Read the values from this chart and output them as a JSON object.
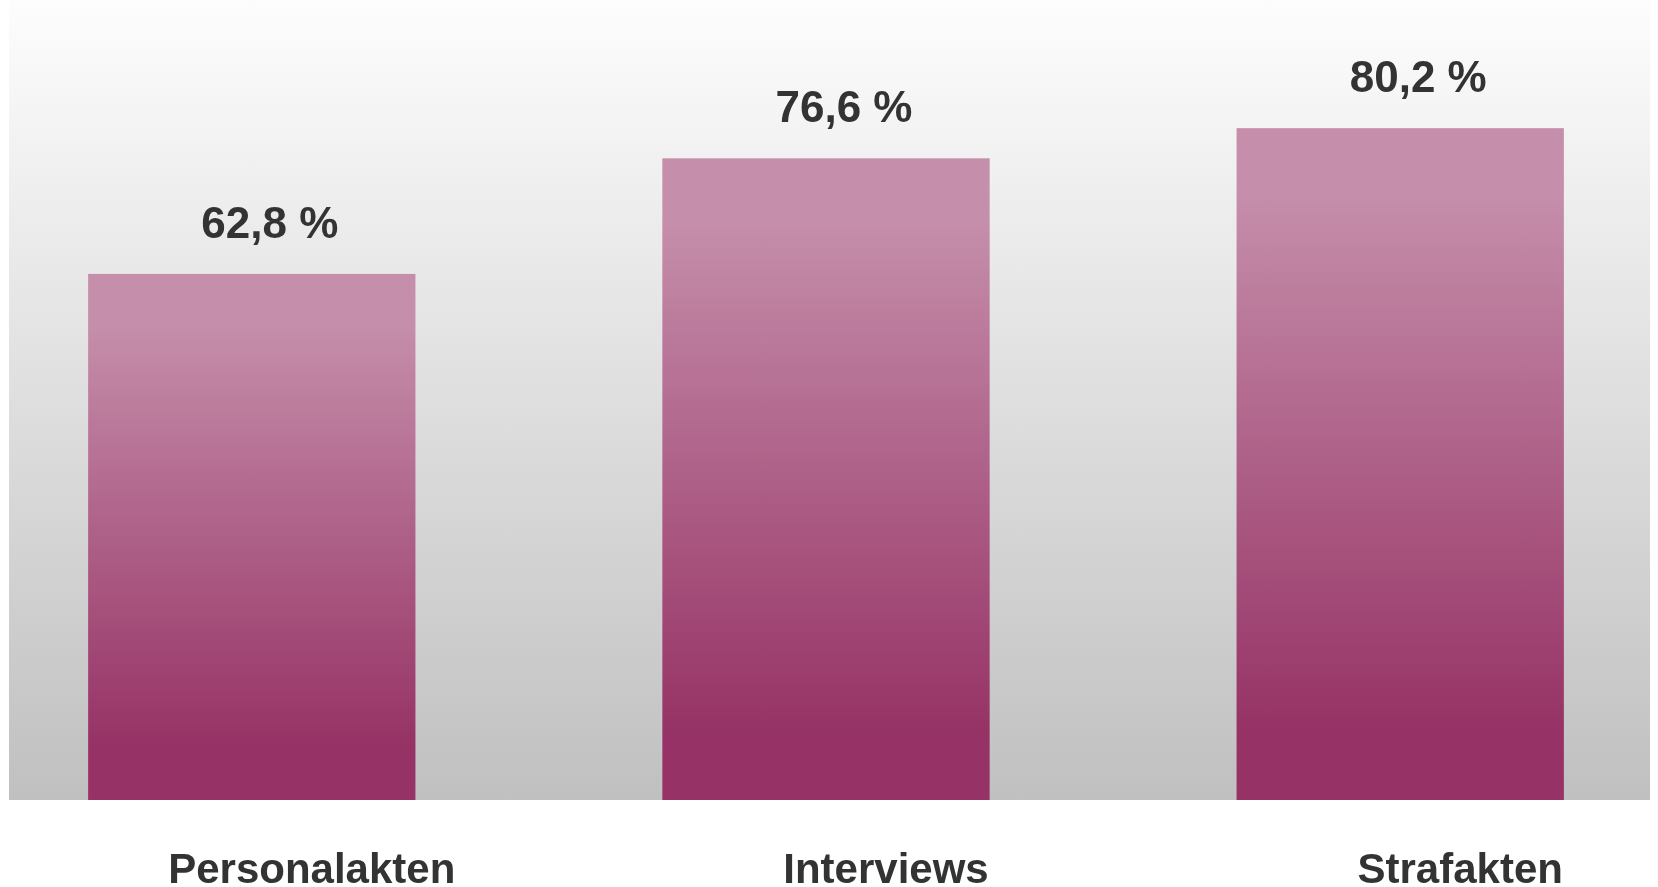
{
  "chart_data": {
    "type": "bar",
    "categories": [
      "Personalakten",
      "Interviews",
      "Strafakten"
    ],
    "values": [
      62.8,
      76.6,
      80.2
    ],
    "color": "#963265",
    "ylim": [
      0,
      95.5
    ],
    "data_labels": true,
    "value_labels": [
      "62,8 %",
      "76,6 %",
      "80,2 %"
    ]
  }
}
